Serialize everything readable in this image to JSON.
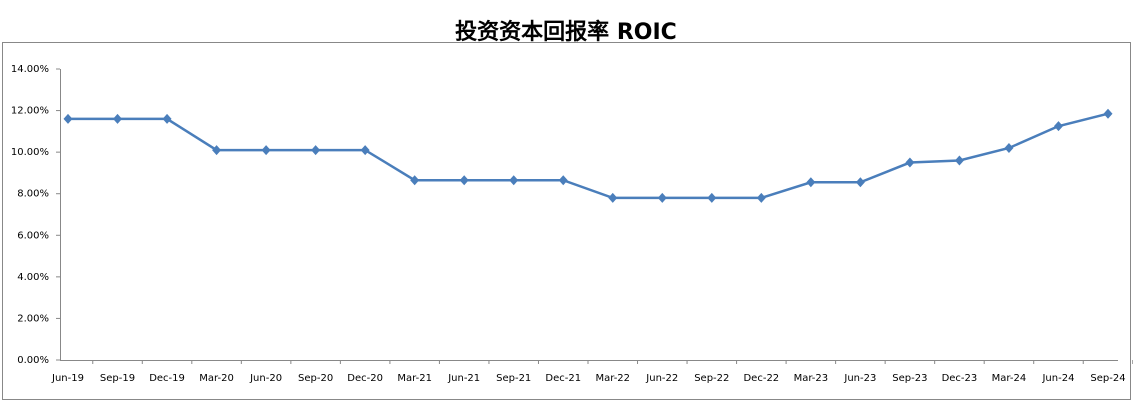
{
  "chart_data": {
    "type": "line",
    "title": "投资资本回报率 ROIC",
    "categories": [
      "Jun-19",
      "Sep-19",
      "Dec-19",
      "Mar-20",
      "Jun-20",
      "Sep-20",
      "Dec-20",
      "Mar-21",
      "Jun-21",
      "Sep-21",
      "Dec-21",
      "Mar-22",
      "Jun-22",
      "Sep-22",
      "Dec-22",
      "Mar-23",
      "Jun-23",
      "Sep-23",
      "Dec-23",
      "Mar-24",
      "Jun-24",
      "Sep-24"
    ],
    "values": [
      11.6,
      11.6,
      11.6,
      10.1,
      10.1,
      10.1,
      10.1,
      8.65,
      8.65,
      8.65,
      8.65,
      7.8,
      7.8,
      7.8,
      7.8,
      8.55,
      8.55,
      9.5,
      9.6,
      10.2,
      11.25,
      11.85
    ],
    "color": "#4a7ebb",
    "ylim": [
      0,
      14
    ],
    "yticks": [
      {
        "value": 0,
        "label": "0.00%"
      },
      {
        "value": 2,
        "label": "2.00%"
      },
      {
        "value": 4,
        "label": "4.00%"
      },
      {
        "value": 6,
        "label": "6.00%"
      },
      {
        "value": 8,
        "label": "8.00%"
      },
      {
        "value": 10,
        "label": "10.00%"
      },
      {
        "value": 12,
        "label": "12.00%"
      },
      {
        "value": 14,
        "label": "14.00%"
      }
    ],
    "grid": false
  }
}
